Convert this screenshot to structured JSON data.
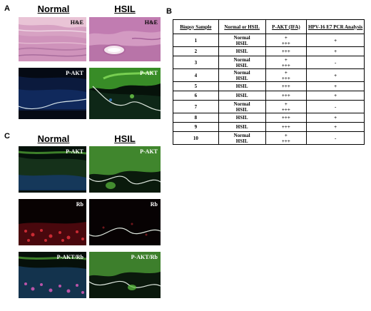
{
  "panels": {
    "a": "A",
    "b": "B",
    "c": "C"
  },
  "panel_a": {
    "normal_heading": "Normal",
    "hsil_heading": "HSIL",
    "normal_he_label": "H&E",
    "hsil_he_label": "H&E",
    "normal_pakt_label": "P-AKT",
    "hsil_pakt_label": "P-AKT"
  },
  "panel_c": {
    "normal_heading": "Normal",
    "hsil_heading": "HSIL",
    "normal_pakt_label": "P-AKT",
    "hsil_pakt_label": "P-AKT",
    "normal_rb_label": "Rb",
    "hsil_rb_label": "Rb",
    "normal_merge_label": "P-AKT/Rb",
    "hsil_merge_label": "P-AKT/Rb"
  },
  "table": {
    "headers": [
      "Biopsy Sample",
      "Normal or HSIL",
      "P-AKT (IFA)",
      "HPV-16 E7 PCR Analysis"
    ],
    "rows": [
      {
        "sample": "1",
        "tissue": [
          "Normal",
          "HSIL"
        ],
        "pakt": [
          "+",
          "+++"
        ],
        "pcr": "+"
      },
      {
        "sample": "2",
        "tissue": [
          "HSIL"
        ],
        "pakt": [
          "+++"
        ],
        "pcr": "+"
      },
      {
        "sample": "3",
        "tissue": [
          "Normal",
          "HSIL"
        ],
        "pakt": [
          "+",
          "+++"
        ],
        "pcr": "-"
      },
      {
        "sample": "4",
        "tissue": [
          "Normal",
          "HSIL"
        ],
        "pakt": [
          "+",
          "+++"
        ],
        "pcr": "+"
      },
      {
        "sample": "5",
        "tissue": [
          "HSIL"
        ],
        "pakt": [
          "+++"
        ],
        "pcr": "+"
      },
      {
        "sample": "6",
        "tissue": [
          "HSIL"
        ],
        "pakt": [
          "+++"
        ],
        "pcr": "+"
      },
      {
        "sample": "7",
        "tissue": [
          "Normal",
          "HSIL"
        ],
        "pakt": [
          "+",
          "+++"
        ],
        "pcr": "-"
      },
      {
        "sample": "8",
        "tissue": [
          "HSIL"
        ],
        "pakt": [
          "+++"
        ],
        "pcr": "+"
      },
      {
        "sample": "9",
        "tissue": [
          "HSIL"
        ],
        "pakt": [
          "+++"
        ],
        "pcr": "+"
      },
      {
        "sample": "10",
        "tissue": [
          "Normal",
          "HSIL"
        ],
        "pakt": [
          "+",
          "+++"
        ],
        "pcr": "-"
      }
    ]
  }
}
